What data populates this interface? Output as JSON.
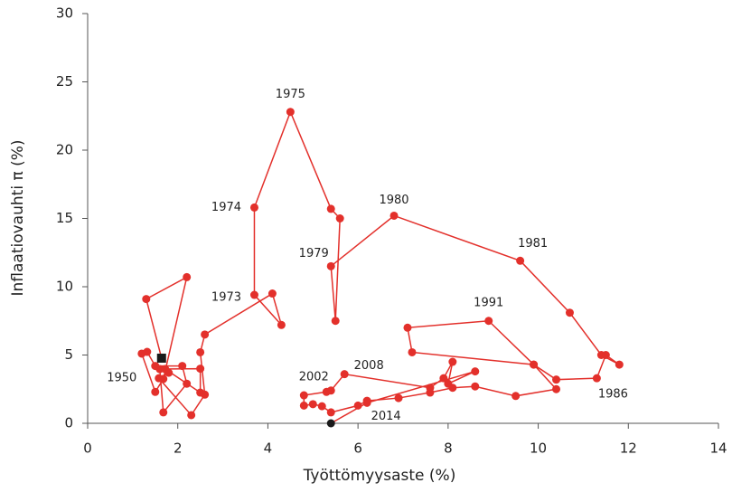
{
  "chart_data": {
    "type": "connected-scatter",
    "xlabel": "Työttömyysaste (%)",
    "ylabel": "Inflaatiovauhti π (%)",
    "xlim": [
      0,
      14
    ],
    "xticks": [
      0,
      2,
      4,
      6,
      8,
      10,
      12,
      14
    ],
    "ylim": [
      0,
      30
    ],
    "yticks": [
      0,
      5,
      10,
      15,
      20,
      25,
      30
    ],
    "grid": false,
    "color": "#e3302b",
    "endpoint_color": "#1a1a1a",
    "x": [
      1.64,
      1.3,
      2.2,
      1.68,
      1.5,
      1.2,
      1.32,
      1.5,
      2.1,
      2.2,
      1.68,
      1.6,
      2.5,
      2.5,
      1.72,
      1.8,
      1.58,
      2.3,
      2.6,
      2.5,
      2.6,
      4.1,
      4.3,
      3.7,
      3.7,
      4.5,
      5.4,
      5.6,
      5.5,
      5.4,
      6.8,
      9.6,
      10.7,
      11.4,
      11.8,
      11.5,
      11.3,
      10.4,
      9.9,
      7.2,
      7.1,
      8.9,
      9.9,
      10.4,
      9.5,
      8.6,
      8.1,
      7.6,
      6.9,
      6.2,
      6.0,
      5.4,
      5.2,
      5.0,
      4.8,
      4.8,
      5.3,
      5.4,
      5.7,
      7.6,
      7.9,
      8.1,
      8.0,
      8.6,
      6.2,
      5.4
    ],
    "values": [
      4.77,
      9.1,
      10.7,
      3.25,
      2.3,
      5.1,
      5.23,
      4.2,
      4.2,
      2.9,
      0.8,
      3.97,
      4.0,
      2.25,
      3.97,
      3.7,
      3.3,
      0.6,
      2.1,
      5.2,
      6.5,
      9.5,
      7.2,
      9.4,
      15.8,
      22.8,
      15.7,
      15.0,
      7.5,
      11.5,
      15.2,
      11.9,
      8.1,
      5.0,
      4.3,
      5.0,
      3.3,
      3.2,
      4.3,
      5.2,
      7.0,
      7.5,
      4.3,
      2.5,
      2.0,
      2.7,
      2.6,
      2.25,
      1.85,
      1.65,
      1.3,
      0.8,
      1.25,
      1.4,
      1.3,
      2.05,
      2.3,
      2.4,
      3.6,
      2.6,
      3.3,
      4.5,
      2.9,
      3.8,
      1.5,
      0
    ],
    "point_labels": [
      "1950",
      null,
      null,
      null,
      null,
      null,
      null,
      null,
      null,
      null,
      null,
      null,
      null,
      null,
      null,
      null,
      null,
      null,
      null,
      null,
      null,
      null,
      null,
      "1973",
      "1974",
      "1975",
      null,
      null,
      null,
      "1979",
      "1980",
      "1981",
      null,
      null,
      null,
      null,
      "1986",
      null,
      null,
      null,
      null,
      "1991",
      null,
      null,
      null,
      null,
      null,
      null,
      null,
      null,
      null,
      null,
      "2002",
      null,
      null,
      null,
      null,
      null,
      "2008",
      null,
      null,
      null,
      null,
      null,
      "2014",
      null
    ]
  }
}
